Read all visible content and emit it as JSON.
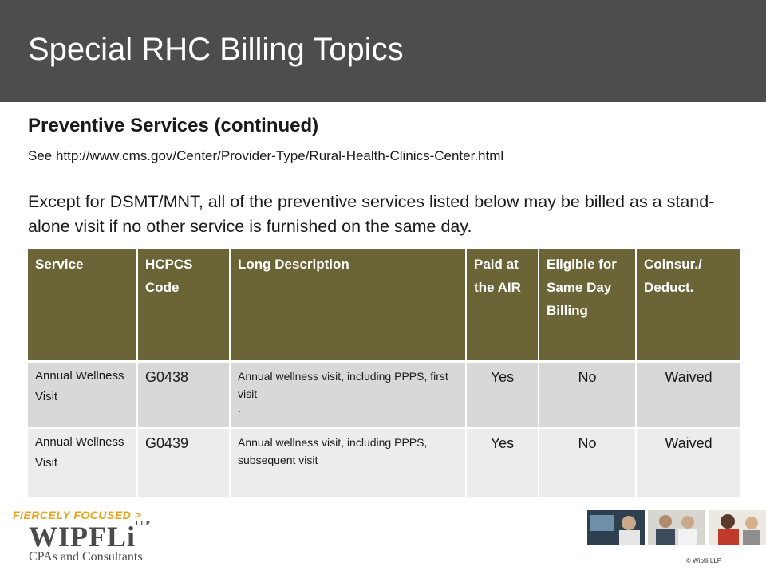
{
  "header": {
    "title": "Special RHC Billing Topics"
  },
  "subtitle": "Preventive Services (continued)",
  "see_line": "See http://www.cms.gov/Center/Provider-Type/Rural-Health-Clinics-Center.html",
  "intro": "Except for DSMT/MNT, all of the preventive services listed below may be billed as a stand-alone visit if no other service is furnished on the same day.",
  "table": {
    "headers": [
      "Service",
      "HCPCS Code",
      "Long Description",
      "Paid at the AIR",
      "Eligible for Same Day Billing",
      "Coinsur./ Deduct."
    ],
    "rows": [
      {
        "service": "Annual Wellness Visit",
        "code": "G0438",
        "description": "Annual wellness visit, including PPPS, first visit",
        "description_extra": ".",
        "paid": "Yes",
        "eligible": "No",
        "coinsurance": "Waived"
      },
      {
        "service": "Annual Wellness Visit",
        "code": "G0439",
        "description": "Annual wellness visit, including PPPS, subsequent visit",
        "paid": "Yes",
        "eligible": "No",
        "coinsurance": "Waived"
      }
    ]
  },
  "footer": {
    "tagline_a": "FIERCELY",
    "tagline_b": "FOCUSED >",
    "logo": "WIPFLi",
    "logo_mark": "LLP",
    "logo_sub": "CPAs and Consultants",
    "copyright": "© Wipfli LLP",
    "colors": {
      "accent": "#e8a218",
      "header_bg": "#4d4d4d",
      "table_header": "#6b6436"
    }
  }
}
